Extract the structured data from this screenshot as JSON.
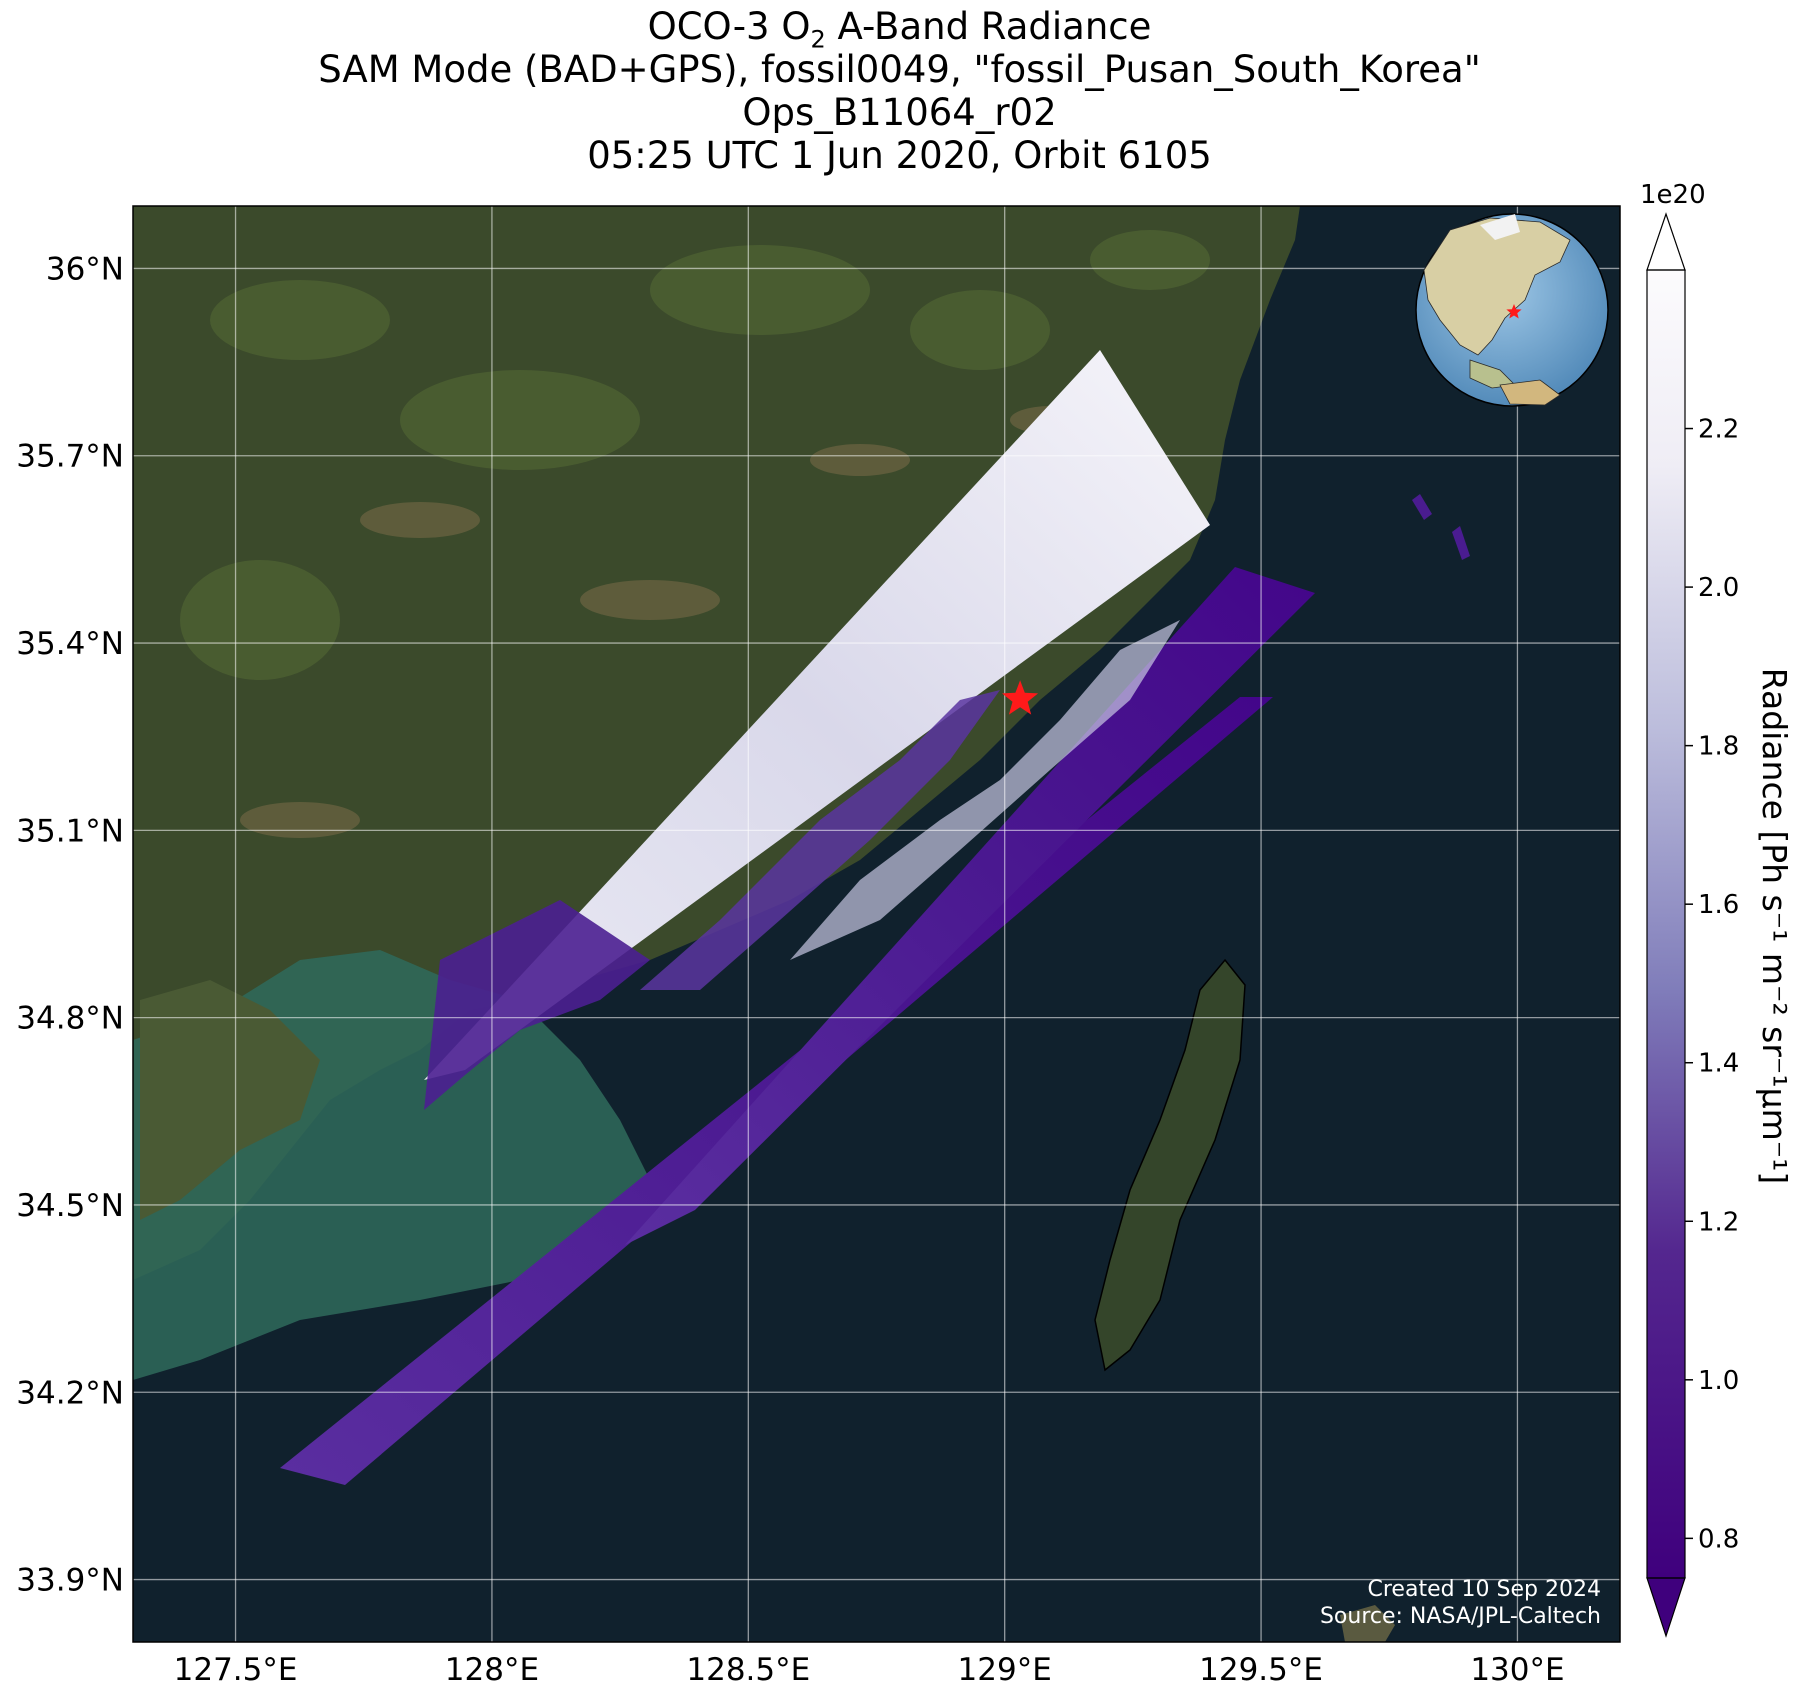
{
  "title": {
    "line1": "OCO-3 O₂ A-Band Radiance",
    "line2": "SAM Mode (BAD+GPS), fossil0049, \"fossil_Pusan_South_Korea\"",
    "line3": "Ops_B11064_r02",
    "line4": "05:25 UTC 1 Jun 2020, Orbit 6105"
  },
  "map": {
    "lon_range": [
      127.3,
      130.2
    ],
    "lat_range": [
      33.8,
      36.1
    ],
    "lon_ticks": [
      127.5,
      128.0,
      128.5,
      129.0,
      129.5,
      130.0
    ],
    "lon_tick_labels": [
      "127.5°E",
      "128°E",
      "128.5°E",
      "129°E",
      "129.5°E",
      "130°E"
    ],
    "lat_ticks": [
      33.9,
      34.2,
      34.5,
      34.8,
      35.1,
      35.4,
      35.7,
      36.0
    ],
    "lat_tick_labels": [
      "33.9°N",
      "34.2°N",
      "34.5°N",
      "34.8°N",
      "35.1°N",
      "35.4°N",
      "35.7°N",
      "36°N"
    ],
    "grid": true,
    "target_marker": {
      "lon": 129.03,
      "lat": 35.31,
      "symbol": "red-star"
    },
    "colors": {
      "ocean": "#10212d",
      "land": "#3d4a2c",
      "shallow": "#2f6a5c",
      "star": "#ff1a1a"
    }
  },
  "colorbar": {
    "label": "Radiance [Ph s⁻¹ m⁻² sr⁻¹μm⁻¹]",
    "scale": "1e20",
    "ticks": [
      0.8,
      1.0,
      1.2,
      1.4,
      1.6,
      1.8,
      2.0,
      2.2
    ],
    "tick_labels": [
      "0.8",
      "1.0",
      "1.2",
      "1.4",
      "1.6",
      "1.8",
      "2.0",
      "2.2"
    ],
    "min": 0.75,
    "max": 2.4,
    "colormap": "Purples_r",
    "extend": "both"
  },
  "footer": {
    "created": "Created 10 Sep 2024",
    "source": "Source: NASA/JPL-Caltech"
  },
  "inset_globe": {
    "center_lon": 130,
    "center_lat": 30,
    "marker": "red-star"
  }
}
